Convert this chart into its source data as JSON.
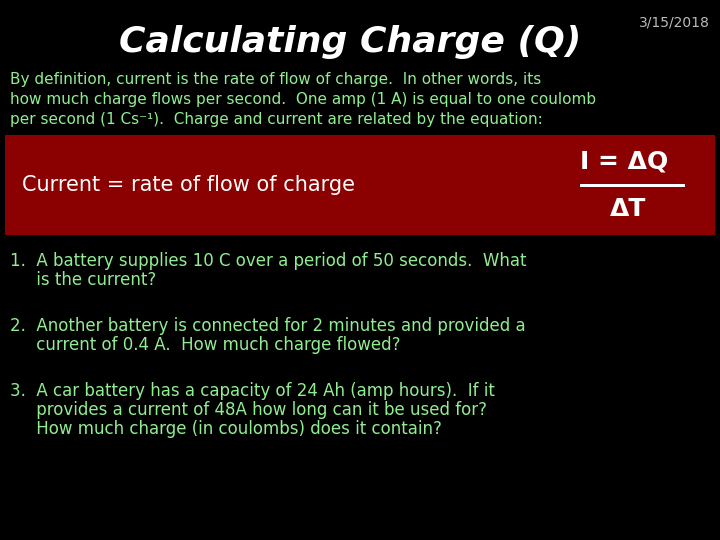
{
  "title": "Calculating Charge (Q)",
  "date": "3/15/2018",
  "bg_color": "#000000",
  "title_color": "#ffffff",
  "date_color": "#bbbbbb",
  "green_color": "#90EE90",
  "red_box_color": "#8B0000",
  "intro_line1": "By definition, current is the rate of flow of charge.  In other words, its",
  "intro_line2": "how much charge flows per second.  One amp (1 A) is equal to one coulomb",
  "intro_line3": "per second (1 Cs⁻¹).  Charge and current are related by the equation:",
  "box_left_text": "Current = rate of flow of charge",
  "box_formula_top": "I = ΔQ",
  "box_formula_bottom": "ΔT",
  "q1_line1": "1.  A battery supplies 10 C over a period of 50 seconds.  What",
  "q1_line2": "     is the current?",
  "q2_line1": "2.  Another battery is connected for 2 minutes and provided a",
  "q2_line2": "     current of 0.4 A.  How much charge flowed?",
  "q3_line1": "3.  A car battery has a capacity of 24 Ah (amp hours).  If it",
  "q3_line2": "     provides a current of 48A how long can it be used for?",
  "q3_line3": "     How much charge (in coulombs) does it contain?"
}
